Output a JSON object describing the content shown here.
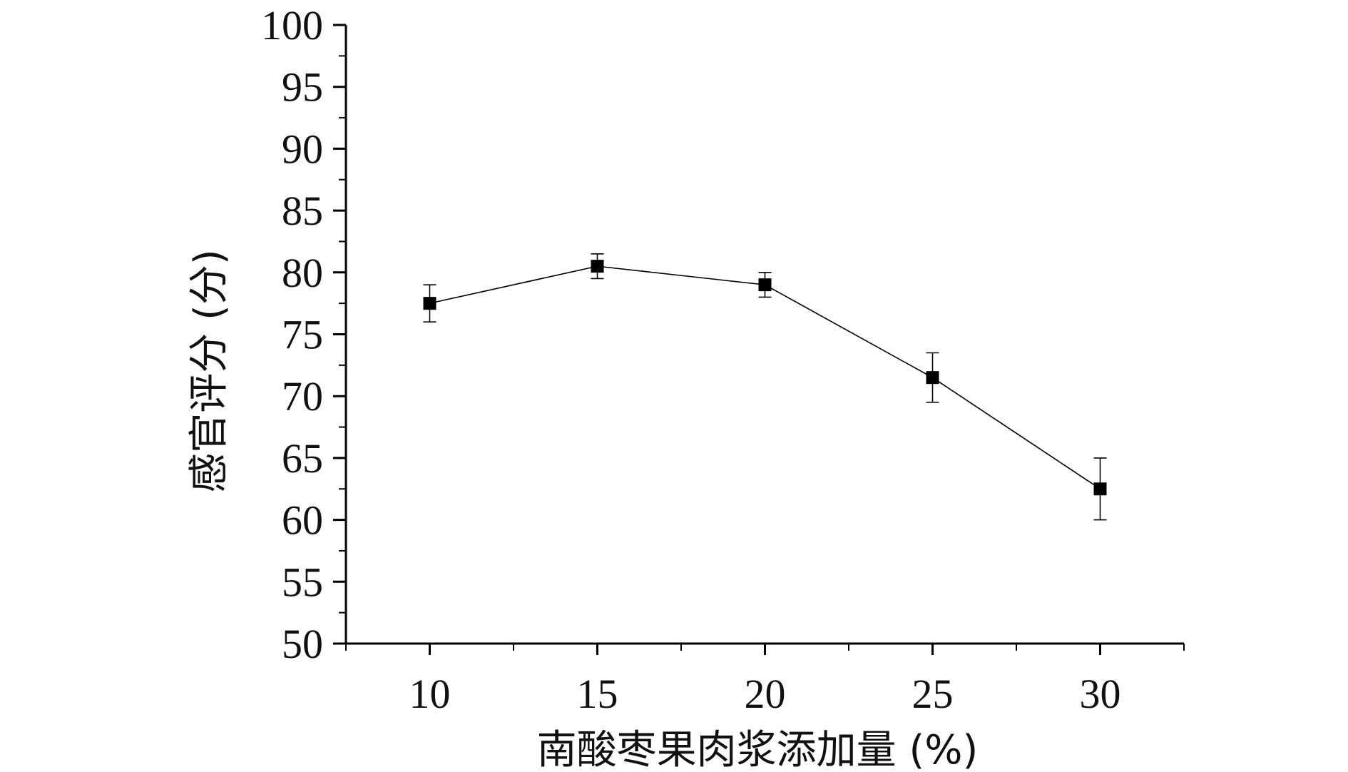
{
  "chart_data": {
    "type": "line",
    "xlabel": "南酸枣果肉浆添加量 (%)",
    "ylabel": "感官评分 (分)",
    "x": [
      10,
      15,
      20,
      25,
      30
    ],
    "series": [
      {
        "values": [
          77.5,
          80.5,
          79.0,
          71.5,
          62.5
        ],
        "error": [
          1.5,
          1.0,
          1.0,
          2.0,
          2.5
        ]
      }
    ],
    "xlim": [
      7.5,
      32.5
    ],
    "ylim": [
      50,
      100
    ],
    "xticks": [
      "10",
      "15",
      "20",
      "25",
      "30"
    ],
    "yticks": [
      "50",
      "55",
      "60",
      "65",
      "70",
      "75",
      "80",
      "85",
      "90",
      "95",
      "100"
    ],
    "marker": "square",
    "colors": {
      "line": "#000000",
      "marker": "#000000"
    },
    "grid": false,
    "legend": "none"
  }
}
